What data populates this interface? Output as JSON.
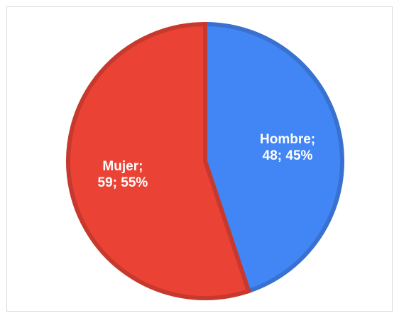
{
  "chart_data": {
    "type": "pie",
    "categories": [
      "Hombre;",
      "Mujer;"
    ],
    "values": [
      48,
      59
    ],
    "value_labels": [
      "48; 45%",
      "59; 55%"
    ],
    "colors": [
      "#4285f4",
      "#ea4335"
    ]
  }
}
